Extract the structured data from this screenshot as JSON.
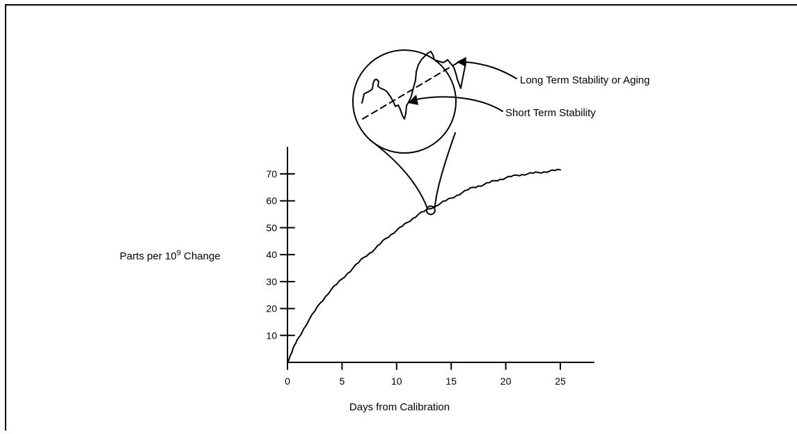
{
  "chart_data": {
    "type": "line",
    "xlabel": "Days from Calibration",
    "ylabel": {
      "prefix": "Parts per 10",
      "superscript": "9",
      "suffix": " Change"
    },
    "xlim": [
      0,
      28
    ],
    "ylim": [
      0,
      80
    ],
    "xticks": [
      0,
      5,
      10,
      15,
      20,
      25
    ],
    "yticks": [
      10,
      20,
      30,
      40,
      50,
      60,
      70
    ],
    "grid": false,
    "series": [
      {
        "x": [
          0,
          0.5,
          1,
          2,
          3,
          4,
          5,
          6,
          7,
          8,
          9,
          10,
          11,
          12,
          13,
          14,
          15,
          16,
          17,
          18,
          19,
          20,
          21,
          22,
          23,
          24,
          25
        ],
        "y": [
          0,
          5,
          9,
          16,
          22,
          27,
          31,
          35,
          39,
          42,
          46,
          49,
          52,
          55,
          57,
          59,
          61,
          63,
          65,
          66,
          67.5,
          68.5,
          69.5,
          70,
          70.5,
          71,
          71.5
        ]
      }
    ],
    "magnified_point": {
      "x": 13,
      "y": 57
    },
    "annotations": {
      "long_term": "Long Term Stability or Aging",
      "short_term": "Short Term Stability"
    }
  }
}
